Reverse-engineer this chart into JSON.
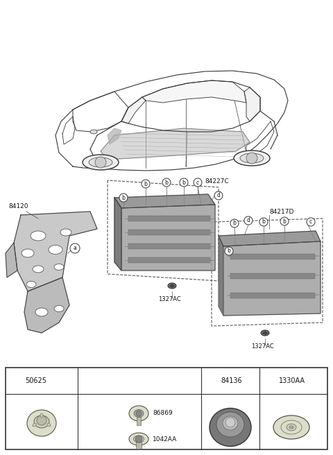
{
  "bg_color": "#ffffff",
  "fig_width": 4.8,
  "fig_height": 6.56,
  "dpi": 100,
  "car_color": "#dddddd",
  "pad_fill": "#aaaaaa",
  "pad_stroke": "#555555",
  "firewall_fill": "#999999",
  "firewall_stroke": "#444444",
  "box_stroke": "#444444",
  "text_color": "#111111",
  "legend_bg": "#ffffff",
  "legend_stroke": "#333333",
  "callout_stroke": "#333333",
  "screw_fill": "#888888",
  "label_84227C": "84227C",
  "label_84217D": "84217D",
  "label_84120": "84120",
  "label_1327AC": "1327AC",
  "col_a_code": "50625",
  "col_b_code": "",
  "col_c_code": "84136",
  "col_d_code": "1330AA",
  "sub_b1": "86869",
  "sub_b2": "1042AA"
}
